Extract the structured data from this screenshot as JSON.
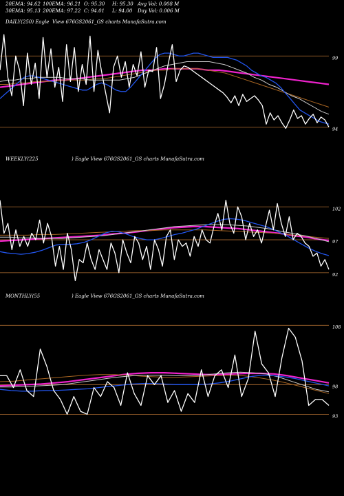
{
  "header": {
    "row1": [
      "20EMA: 94.62",
      "100EMA: 96.21",
      "O: 95.30",
      "H: 95.30",
      "Avg Vol: 0.008  M"
    ],
    "row2": [
      "30EMA: 95.13",
      "200EMA: 97.22",
      "C: 94.01",
      "L: 94.00",
      "Day Vol: 0.006  M"
    ]
  },
  "colors": {
    "background": "#000000",
    "price": "#ffffff",
    "ema_short": "#2255ee",
    "ema_long": "#ee22cc",
    "ema_mid": "#cccccc",
    "ema_brown": "#aa6622",
    "hline": "#b87333"
  },
  "chart_data": [
    {
      "type": "line",
      "title": "DAILY(250) Eagle",
      "subtitle": "View  676GS2061_GS charts MunafaSutra.com",
      "ylim": [
        93,
        101
      ],
      "yticks": [
        {
          "value": 99,
          "label": "99"
        },
        {
          "value": 94,
          "label": "94"
        }
      ],
      "hlines": [
        99,
        94
      ],
      "price": [
        98.0,
        100.5,
        97.5,
        96.2,
        99.0,
        98.0,
        95.5,
        99.2,
        97.0,
        98.5,
        96.0,
        100.3,
        97.5,
        99.5,
        96.8,
        98.2,
        95.8,
        99.8,
        97.2,
        99.6,
        96.5,
        98.4,
        97.0,
        100.4,
        96.5,
        99.4,
        97.8,
        96.4,
        95.0,
        98.2,
        99.0,
        97.5,
        98.6,
        96.8,
        98.4,
        97.6,
        99.3,
        96.8,
        98.0,
        97.9,
        99.6,
        96.0,
        97.0,
        98.5,
        99.8,
        97.2,
        98.0,
        98.3,
        98.2,
        98.0,
        97.8,
        97.6,
        97.4,
        97.2,
        97.0,
        96.8,
        96.6,
        96.4,
        96.1,
        95.7,
        96.2,
        95.5,
        96.3,
        95.8,
        96.0,
        96.2,
        95.9,
        95.5,
        94.2,
        95.0,
        94.5,
        94.8,
        94.3,
        93.9,
        94.5,
        95.2,
        94.6,
        94.8,
        94.2,
        94.6,
        94.9,
        94.3,
        94.7,
        94.5,
        94.0
      ],
      "ema_short": [
        96.0,
        96.3,
        96.6,
        96.9,
        97.2,
        97.5,
        97.6,
        97.6,
        97.5,
        97.4,
        97.3,
        97.2,
        97.1,
        97.0,
        96.9,
        96.8,
        96.7,
        96.6,
        96.6,
        96.8,
        97.0,
        97.1,
        97.0,
        96.8,
        96.6,
        96.5,
        96.5,
        96.8,
        97.2,
        97.6,
        98.0,
        98.4,
        98.8,
        99.1,
        99.2,
        99.2,
        99.1,
        99.0,
        99.0,
        99.1,
        99.2,
        99.2,
        99.1,
        99.0,
        98.9,
        98.9,
        98.9,
        98.9,
        98.8,
        98.7,
        98.5,
        98.3,
        98.0,
        97.8,
        97.6,
        97.5,
        97.3,
        97.1,
        96.8,
        96.4,
        96.0,
        95.6,
        95.2,
        95.0,
        94.8,
        94.6,
        94.4,
        94.3,
        94.2
      ],
      "ema_mid": [
        97.2,
        97.3,
        97.3,
        97.4,
        97.4,
        97.5,
        97.5,
        97.5,
        97.5,
        97.4,
        97.4,
        97.4,
        97.3,
        97.3,
        97.3,
        97.3,
        97.3,
        97.4,
        97.5,
        97.7,
        97.9,
        98.1,
        98.3,
        98.4,
        98.5,
        98.6,
        98.6,
        98.6,
        98.6,
        98.5,
        98.4,
        98.2,
        98.0,
        97.8,
        97.5,
        97.3,
        97.0,
        96.8,
        96.5,
        96.2,
        96.0,
        95.7,
        95.4,
        95.1,
        94.9
      ],
      "ema_brown": [
        97.0,
        97.0,
        97.1,
        97.1,
        97.2,
        97.2,
        97.2,
        97.3,
        97.3,
        97.3,
        97.3,
        97.4,
        97.4,
        97.5,
        97.6,
        97.7,
        97.8,
        97.9,
        98.0,
        98.0,
        98.1,
        98.1,
        98.1,
        98.1,
        98.0,
        97.9,
        97.8,
        97.6,
        97.4,
        97.2,
        97.0,
        96.8,
        96.6,
        96.4,
        96.2,
        96.0,
        95.8,
        95.6,
        95.4
      ],
      "ema_long": [
        96.8,
        96.9,
        97.0,
        97.1,
        97.2,
        97.3,
        97.3,
        97.4,
        97.5,
        97.6,
        97.7,
        97.8,
        97.9,
        98.0,
        98.0,
        98.1,
        98.1,
        98.1,
        98.1,
        98.0,
        98.0,
        97.9,
        97.8,
        97.7,
        97.6,
        97.5,
        97.4,
        97.3,
        97.2,
        97.1,
        97.0
      ]
    },
    {
      "type": "line",
      "title": "WEEKLY(225",
      "subtitle": ") Eagle   View  676GS2061_GS charts MunafaSutra.com",
      "ylim": [
        90,
        106
      ],
      "yticks": [
        {
          "value": 102,
          "label": "102"
        },
        {
          "value": 97,
          "label": "97"
        },
        {
          "value": 92,
          "label": "92"
        }
      ],
      "hlines": [
        102,
        97,
        92
      ],
      "price": [
        103.0,
        98.0,
        99.5,
        95.5,
        98.5,
        96.0,
        97.5,
        96.0,
        98.0,
        97.0,
        100.0,
        96.5,
        99.5,
        97.5,
        93.0,
        96.0,
        92.5,
        98.0,
        95.5,
        90.8,
        94.0,
        93.5,
        96.5,
        94.0,
        92.5,
        95.5,
        94.0,
        92.5,
        96.5,
        95.0,
        92.0,
        97.0,
        95.0,
        93.5,
        97.5,
        96.5,
        94.0,
        96.0,
        92.5,
        97.0,
        95.5,
        93.0,
        97.5,
        98.5,
        94.0,
        97.0,
        96.0,
        96.5,
        94.5,
        97.5,
        96.0,
        98.5,
        97.0,
        96.5,
        99.0,
        101.0,
        98.5,
        103.0,
        99.5,
        98.0,
        102.0,
        100.5,
        97.0,
        99.5,
        97.5,
        98.5,
        96.5,
        99.0,
        101.5,
        98.5,
        102.5,
        99.5,
        97.5,
        100.5,
        97.0,
        98.0,
        97.5,
        96.5,
        96.0,
        94.5,
        95.0,
        93.0,
        94.0,
        92.5
      ],
      "ema_short": [
        95.2,
        95.0,
        94.9,
        94.8,
        94.9,
        95.1,
        95.4,
        95.8,
        96.2,
        96.3,
        96.3,
        96.4,
        96.6,
        97.0,
        97.5,
        98.0,
        98.3,
        98.2,
        97.9,
        97.5,
        97.2,
        97.0,
        97.0,
        97.2,
        97.5,
        97.8,
        98.0,
        98.3,
        98.6,
        99.0,
        99.4,
        99.8,
        100.1,
        100.2,
        100.1,
        99.9,
        99.6,
        99.3,
        99.0,
        98.6,
        98.1,
        97.6,
        97.0,
        96.4,
        95.8,
        95.3,
        94.9,
        94.6
      ],
      "ema_mid": [
        97.4,
        97.4,
        97.3,
        97.3,
        97.2,
        97.2,
        97.2,
        97.3,
        97.4,
        97.5,
        97.6,
        97.8,
        98.0,
        98.2,
        98.4,
        98.6,
        98.8,
        99.0,
        99.1,
        99.2,
        99.3,
        99.3,
        99.3,
        99.2,
        99.1,
        98.9,
        98.7,
        98.4,
        98.1,
        97.8,
        97.5,
        97.1,
        96.7
      ],
      "ema_brown": [
        97.7,
        97.7,
        97.7,
        97.8,
        97.8,
        97.9,
        98.0,
        98.1,
        98.2,
        98.3,
        98.4,
        98.4,
        98.5,
        98.5,
        98.5,
        98.5,
        98.4,
        98.3,
        98.2,
        98.1,
        98.0,
        97.8,
        97.6,
        97.4,
        97.2
      ],
      "ema_long": [
        96.8,
        96.9,
        97.0,
        97.1,
        97.2,
        97.3,
        97.4,
        97.5,
        97.6,
        97.7,
        97.9,
        98.0,
        98.2,
        98.4,
        98.6,
        98.8,
        98.9,
        99.0,
        99.0,
        98.9,
        98.8,
        98.7,
        98.5,
        98.3,
        98.1,
        97.9,
        97.6,
        97.4,
        97.1,
        96.9
      ]
    },
    {
      "type": "line",
      "title": "MONTHLY(55",
      "subtitle": ") Eagle   View  676GS2061_GS charts MunafaSutra.com",
      "ylim": [
        92,
        110
      ],
      "yticks": [
        {
          "value": 108,
          "label": "108"
        },
        {
          "value": 98,
          "label": "98"
        },
        {
          "value": 93,
          "label": "93"
        }
      ],
      "hlines": [
        108,
        98,
        93
      ],
      "price": [
        99.5,
        99.5,
        97.5,
        100.5,
        97.0,
        96.0,
        104.0,
        101.0,
        97.0,
        95.5,
        93.0,
        96.0,
        93.5,
        93.0,
        97.5,
        96.0,
        98.5,
        97.5,
        94.5,
        100.0,
        96.5,
        94.5,
        99.5,
        98.0,
        99.5,
        95.0,
        97.0,
        93.5,
        96.5,
        95.0,
        100.5,
        96.0,
        99.5,
        100.5,
        97.5,
        103.0,
        96.0,
        99.0,
        107.0,
        101.5,
        100.0,
        96.0,
        102.5,
        107.5,
        106.0,
        102.0,
        94.5,
        95.5,
        95.5,
        94.5
      ],
      "ema_short": [
        97.2,
        97.0,
        96.9,
        96.9,
        97.0,
        97.0,
        97.1,
        97.2,
        97.3,
        97.5,
        97.7,
        97.9,
        98.1,
        98.2,
        98.2,
        98.1,
        98.0,
        98.0,
        98.0,
        98.1,
        98.3,
        98.6,
        99.0,
        99.4,
        99.6,
        99.5,
        99.3,
        99.0,
        98.6,
        98.2,
        97.8
      ],
      "ema_mid": [
        97.6,
        97.6,
        97.7,
        97.8,
        97.9,
        98.0,
        98.3,
        98.6,
        98.9,
        99.2,
        99.4,
        99.6,
        99.6,
        99.6,
        99.5,
        99.5,
        99.6,
        99.8,
        100.0,
        100.1,
        100.0,
        99.8,
        99.3,
        98.6,
        97.9,
        97.2,
        96.8
      ],
      "ema_brown": [
        98.5,
        98.6,
        98.8,
        99.0,
        99.2,
        99.4,
        99.6,
        99.7,
        99.7,
        99.6,
        99.4,
        99.3,
        99.2,
        99.3,
        99.4,
        99.5,
        99.6,
        99.5,
        99.2,
        98.8,
        98.3,
        97.7,
        97.1,
        96.5
      ],
      "ema_long": [
        97.8,
        97.9,
        98.0,
        98.1,
        98.3,
        98.5,
        98.8,
        99.1,
        99.4,
        99.7,
        99.9,
        100.0,
        100.0,
        99.9,
        99.8,
        99.7,
        99.7,
        99.8,
        99.9,
        99.9,
        99.8,
        99.5,
        99.1,
        98.7,
        98.3
      ]
    }
  ]
}
